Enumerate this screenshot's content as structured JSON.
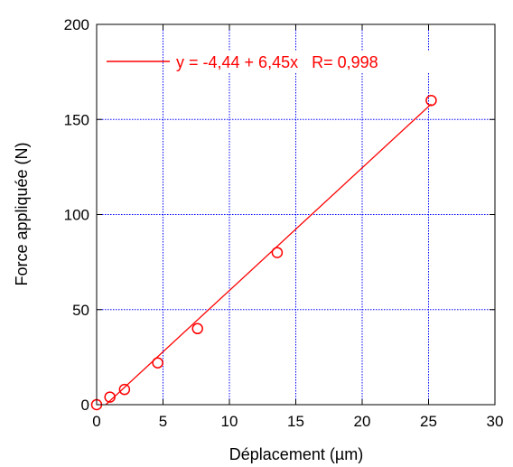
{
  "chart_data": {
    "type": "scatter",
    "xlabel": "Déplacement (µm)",
    "ylabel": "Force appliquée  (N)",
    "xlim": [
      0,
      30
    ],
    "ylim": [
      0,
      200
    ],
    "x_ticks": [
      0,
      5,
      10,
      15,
      20,
      25,
      30
    ],
    "y_ticks": [
      0,
      50,
      100,
      150,
      200
    ],
    "x_tick_labels": [
      "0",
      "5",
      "10",
      "15",
      "20",
      "25",
      "30"
    ],
    "y_tick_labels": [
      "0",
      "50",
      "100",
      "150",
      "200"
    ],
    "grid": true,
    "legend_position": "top-left",
    "series": [
      {
        "points": [
          {
            "x": 0.0,
            "y": 0
          },
          {
            "x": 1.0,
            "y": 4
          },
          {
            "x": 2.1,
            "y": 8
          },
          {
            "x": 4.6,
            "y": 22
          },
          {
            "x": 7.6,
            "y": 40
          },
          {
            "x": 13.6,
            "y": 80
          },
          {
            "x": 25.2,
            "y": 160
          }
        ],
        "marker": "open-circle",
        "color": "#ff0000"
      }
    ],
    "fit": {
      "intercept": -4.44,
      "slope": 6.45,
      "x_range": [
        0,
        25.2
      ],
      "label": "y = -4,44 + 6,45x   R= 0,998",
      "color": "#ff0000"
    },
    "colors": {
      "grid": "#0000ff",
      "series": "#ff0000",
      "axes": "#000000"
    }
  }
}
